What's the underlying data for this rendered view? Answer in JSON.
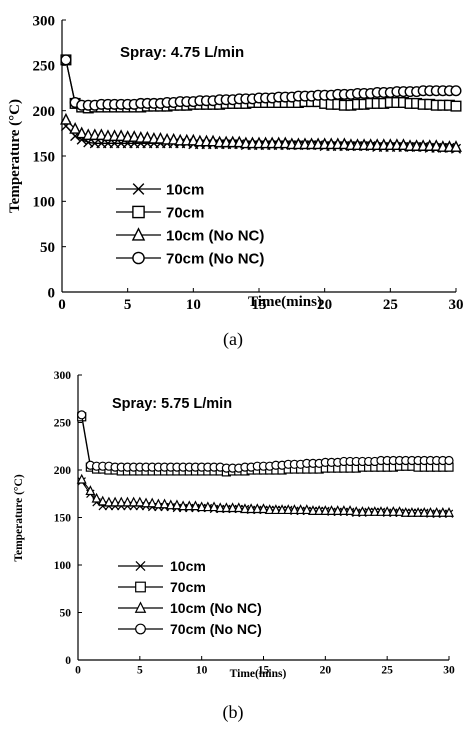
{
  "chart_data": [
    {
      "type": "line",
      "annotation": "Spray: 4.75 L/min",
      "xlabel": "Time(mins)",
      "ylabel": "Temperature (°C)",
      "xlim": [
        0,
        30
      ],
      "ylim": [
        0,
        300
      ],
      "xticks": [
        0,
        5,
        10,
        15,
        20,
        25,
        30
      ],
      "yticks": [
        0,
        50,
        100,
        150,
        200,
        250,
        300
      ],
      "grid": false,
      "legend_position": "bottom-left",
      "caption": "(a)",
      "series": [
        {
          "name": "10cm",
          "marker": "cross",
          "x": [
            0.3,
            1,
            1.5,
            2,
            2.5,
            3,
            3.5,
            4,
            4.5,
            5,
            5.5,
            6,
            6.5,
            7,
            7.5,
            8,
            8.5,
            9,
            9.5,
            10,
            10.5,
            11,
            11.5,
            12,
            12.5,
            13,
            13.5,
            14,
            14.5,
            15,
            15.5,
            16,
            16.5,
            17,
            17.5,
            18,
            18.5,
            19,
            19.5,
            20,
            20.5,
            21,
            21.5,
            22,
            22.5,
            23,
            23.5,
            24,
            24.5,
            25,
            25.5,
            26,
            26.5,
            27,
            27.5,
            28,
            28.5,
            29,
            29.5,
            30
          ],
          "y": [
            183,
            172,
            168,
            165,
            164,
            164,
            164,
            164,
            164,
            164,
            164,
            164,
            164,
            164,
            164,
            164,
            164,
            164,
            164,
            163,
            163,
            163,
            163,
            163,
            163,
            163,
            163,
            162,
            162,
            162,
            162,
            162,
            162,
            162,
            162,
            162,
            162,
            162,
            162,
            161,
            161,
            161,
            161,
            161,
            161,
            161,
            161,
            160,
            160,
            160,
            160,
            160,
            160,
            160,
            160,
            159,
            159,
            159,
            159,
            158
          ]
        },
        {
          "name": "70cm",
          "marker": "square",
          "x": [
            0.3,
            1,
            1.5,
            2,
            2.5,
            3,
            3.5,
            4,
            4.5,
            5,
            5.5,
            6,
            6.5,
            7,
            7.5,
            8,
            8.5,
            9,
            9.5,
            10,
            10.5,
            11,
            11.5,
            12,
            12.5,
            13,
            13.5,
            14,
            14.5,
            15,
            15.5,
            16,
            16.5,
            17,
            17.5,
            18,
            18.5,
            19,
            19.5,
            20,
            20.5,
            21,
            21.5,
            22,
            22.5,
            23,
            23.5,
            24,
            24.5,
            25,
            25.5,
            26,
            26.5,
            27,
            27.5,
            28,
            28.5,
            29,
            29.5,
            30
          ],
          "y": [
            256,
            208,
            204,
            203,
            204,
            204,
            204,
            204,
            204,
            204,
            204,
            204,
            205,
            205,
            205,
            205,
            206,
            206,
            206,
            207,
            207,
            207,
            207,
            207,
            208,
            208,
            208,
            208,
            209,
            209,
            209,
            209,
            209,
            209,
            209,
            209,
            210,
            210,
            210,
            208,
            207,
            207,
            206,
            206,
            207,
            207,
            208,
            208,
            208,
            209,
            209,
            209,
            208,
            208,
            207,
            207,
            206,
            206,
            206,
            205
          ]
        },
        {
          "name": "10cm (No NC)",
          "marker": "triangle",
          "x": [
            0.3,
            1,
            1.5,
            2,
            2.5,
            3,
            3.5,
            4,
            4.5,
            5,
            5.5,
            6,
            6.5,
            7,
            7.5,
            8,
            8.5,
            9,
            9.5,
            10,
            10.5,
            11,
            11.5,
            12,
            12.5,
            13,
            13.5,
            14,
            14.5,
            15,
            15.5,
            16,
            16.5,
            17,
            17.5,
            18,
            18.5,
            19,
            19.5,
            20,
            20.5,
            21,
            21.5,
            22,
            22.5,
            23,
            23.5,
            24,
            24.5,
            25,
            25.5,
            26,
            26.5,
            27,
            27.5,
            28,
            28.5,
            29,
            29.5,
            30
          ],
          "y": [
            190,
            180,
            175,
            173,
            173,
            173,
            172,
            172,
            172,
            171,
            171,
            170,
            170,
            169,
            169,
            168,
            168,
            167,
            167,
            167,
            166,
            166,
            166,
            165,
            165,
            165,
            165,
            164,
            164,
            164,
            164,
            164,
            164,
            164,
            163,
            163,
            163,
            163,
            163,
            163,
            163,
            163,
            163,
            162,
            162,
            162,
            162,
            162,
            162,
            162,
            162,
            162,
            161,
            161,
            161,
            161,
            161,
            160,
            160,
            160
          ]
        },
        {
          "name": "70cm (No NC)",
          "marker": "circle",
          "x": [
            0.3,
            1,
            1.5,
            2,
            2.5,
            3,
            3.5,
            4,
            4.5,
            5,
            5.5,
            6,
            6.5,
            7,
            7.5,
            8,
            8.5,
            9,
            9.5,
            10,
            10.5,
            11,
            11.5,
            12,
            12.5,
            13,
            13.5,
            14,
            14.5,
            15,
            15.5,
            16,
            16.5,
            17,
            17.5,
            18,
            18.5,
            19,
            19.5,
            20,
            20.5,
            21,
            21.5,
            22,
            22.5,
            23,
            23.5,
            24,
            24.5,
            25,
            25.5,
            26,
            26.5,
            27,
            27.5,
            28,
            28.5,
            29,
            29.5,
            30
          ],
          "y": [
            256,
            209,
            206,
            206,
            206,
            207,
            207,
            207,
            207,
            207,
            207,
            208,
            208,
            208,
            208,
            209,
            209,
            210,
            210,
            210,
            211,
            211,
            211,
            212,
            212,
            212,
            213,
            213,
            213,
            214,
            214,
            214,
            215,
            215,
            215,
            216,
            216,
            216,
            217,
            217,
            217,
            218,
            218,
            218,
            219,
            219,
            219,
            220,
            220,
            220,
            221,
            221,
            221,
            221,
            222,
            222,
            222,
            222,
            222,
            222
          ]
        }
      ]
    },
    {
      "type": "line",
      "annotation": "Spray: 5.75 L/min",
      "xlabel": "Time(mins)",
      "ylabel": "Temperature (°C)",
      "xlim": [
        0,
        30
      ],
      "ylim": [
        0,
        300
      ],
      "xticks": [
        0,
        5,
        10,
        15,
        20,
        25,
        30
      ],
      "yticks": [
        0,
        50,
        100,
        150,
        200,
        250,
        300
      ],
      "grid": false,
      "legend_position": "bottom-left",
      "caption": "(b)",
      "series": [
        {
          "name": "10cm",
          "marker": "cross",
          "x": [
            0.3,
            1,
            1.5,
            2,
            2.5,
            3,
            3.5,
            4,
            4.5,
            5,
            5.5,
            6,
            6.5,
            7,
            7.5,
            8,
            8.5,
            9,
            9.5,
            10,
            10.5,
            11,
            11.5,
            12,
            12.5,
            13,
            13.5,
            14,
            14.5,
            15,
            15.5,
            16,
            16.5,
            17,
            17.5,
            18,
            18.5,
            19,
            19.5,
            20,
            20.5,
            21,
            21.5,
            22,
            22.5,
            23,
            23.5,
            24,
            24.5,
            25,
            25.5,
            26,
            26.5,
            27,
            27.5,
            28,
            28.5,
            29,
            29.5,
            30
          ],
          "y": [
            188,
            175,
            166,
            162,
            162,
            162,
            162,
            162,
            162,
            162,
            162,
            161,
            161,
            161,
            161,
            160,
            160,
            160,
            160,
            160,
            160,
            159,
            159,
            159,
            159,
            159,
            159,
            158,
            158,
            158,
            158,
            158,
            158,
            158,
            157,
            157,
            157,
            157,
            157,
            157,
            156,
            156,
            156,
            156,
            155,
            155,
            156,
            156,
            156,
            155,
            155,
            155,
            155,
            155,
            155,
            155,
            154,
            154,
            154,
            154
          ]
        },
        {
          "name": "70cm",
          "marker": "square",
          "x": [
            0.3,
            1,
            1.5,
            2,
            2.5,
            3,
            3.5,
            4,
            4.5,
            5,
            5.5,
            6,
            6.5,
            7,
            7.5,
            8,
            8.5,
            9,
            9.5,
            10,
            10.5,
            11,
            11.5,
            12,
            12.5,
            13,
            13.5,
            14,
            14.5,
            15,
            15.5,
            16,
            16.5,
            17,
            17.5,
            18,
            18.5,
            19,
            19.5,
            20,
            20.5,
            21,
            21.5,
            22,
            22.5,
            23,
            23.5,
            24,
            24.5,
            25,
            25.5,
            26,
            26.5,
            27,
            27.5,
            28,
            28.5,
            29,
            29.5,
            30
          ],
          "y": [
            256,
            203,
            201,
            201,
            200,
            200,
            199,
            199,
            199,
            199,
            199,
            199,
            199,
            199,
            199,
            199,
            199,
            199,
            199,
            199,
            199,
            199,
            199,
            198,
            199,
            199,
            199,
            200,
            200,
            200,
            200,
            200,
            200,
            201,
            201,
            201,
            201,
            201,
            201,
            202,
            202,
            202,
            202,
            202,
            202,
            203,
            203,
            203,
            203,
            203,
            203,
            204,
            204,
            204,
            203,
            203,
            203,
            203,
            203,
            203
          ]
        },
        {
          "name": "10cm (No NC)",
          "marker": "triangle",
          "x": [
            0.3,
            1,
            1.5,
            2,
            2.5,
            3,
            3.5,
            4,
            4.5,
            5,
            5.5,
            6,
            6.5,
            7,
            7.5,
            8,
            8.5,
            9,
            9.5,
            10,
            10.5,
            11,
            11.5,
            12,
            12.5,
            13,
            13.5,
            14,
            14.5,
            15,
            15.5,
            16,
            16.5,
            17,
            17.5,
            18,
            18.5,
            19,
            19.5,
            20,
            20.5,
            21,
            21.5,
            22,
            22.5,
            23,
            23.5,
            24,
            24.5,
            25,
            25.5,
            26,
            26.5,
            27,
            27.5,
            28,
            28.5,
            29,
            29.5,
            30
          ],
          "y": [
            190,
            178,
            170,
            167,
            166,
            166,
            166,
            166,
            166,
            166,
            165,
            165,
            164,
            164,
            163,
            163,
            162,
            162,
            162,
            161,
            161,
            161,
            160,
            160,
            160,
            160,
            159,
            159,
            159,
            159,
            158,
            158,
            158,
            158,
            158,
            158,
            158,
            157,
            157,
            157,
            157,
            157,
            157,
            157,
            156,
            156,
            156,
            156,
            156,
            156,
            156,
            156,
            155,
            155,
            155,
            155,
            155,
            155,
            155,
            155
          ]
        },
        {
          "name": "70cm (No NC)",
          "marker": "circle",
          "x": [
            0.3,
            1,
            1.5,
            2,
            2.5,
            3,
            3.5,
            4,
            4.5,
            5,
            5.5,
            6,
            6.5,
            7,
            7.5,
            8,
            8.5,
            9,
            9.5,
            10,
            10.5,
            11,
            11.5,
            12,
            12.5,
            13,
            13.5,
            14,
            14.5,
            15,
            15.5,
            16,
            16.5,
            17,
            17.5,
            18,
            18.5,
            19,
            19.5,
            20,
            20.5,
            21,
            21.5,
            22,
            22.5,
            23,
            23.5,
            24,
            24.5,
            25,
            25.5,
            26,
            26.5,
            27,
            27.5,
            28,
            28.5,
            29,
            29.5,
            30
          ],
          "y": [
            258,
            205,
            204,
            204,
            204,
            203,
            203,
            203,
            203,
            203,
            203,
            203,
            203,
            203,
            203,
            203,
            203,
            203,
            203,
            203,
            203,
            203,
            203,
            202,
            202,
            202,
            203,
            203,
            204,
            204,
            204,
            205,
            205,
            206,
            206,
            206,
            207,
            207,
            207,
            208,
            208,
            208,
            209,
            209,
            209,
            209,
            209,
            209,
            210,
            210,
            210,
            210,
            210,
            210,
            210,
            210,
            210,
            210,
            210,
            210
          ]
        }
      ]
    }
  ]
}
